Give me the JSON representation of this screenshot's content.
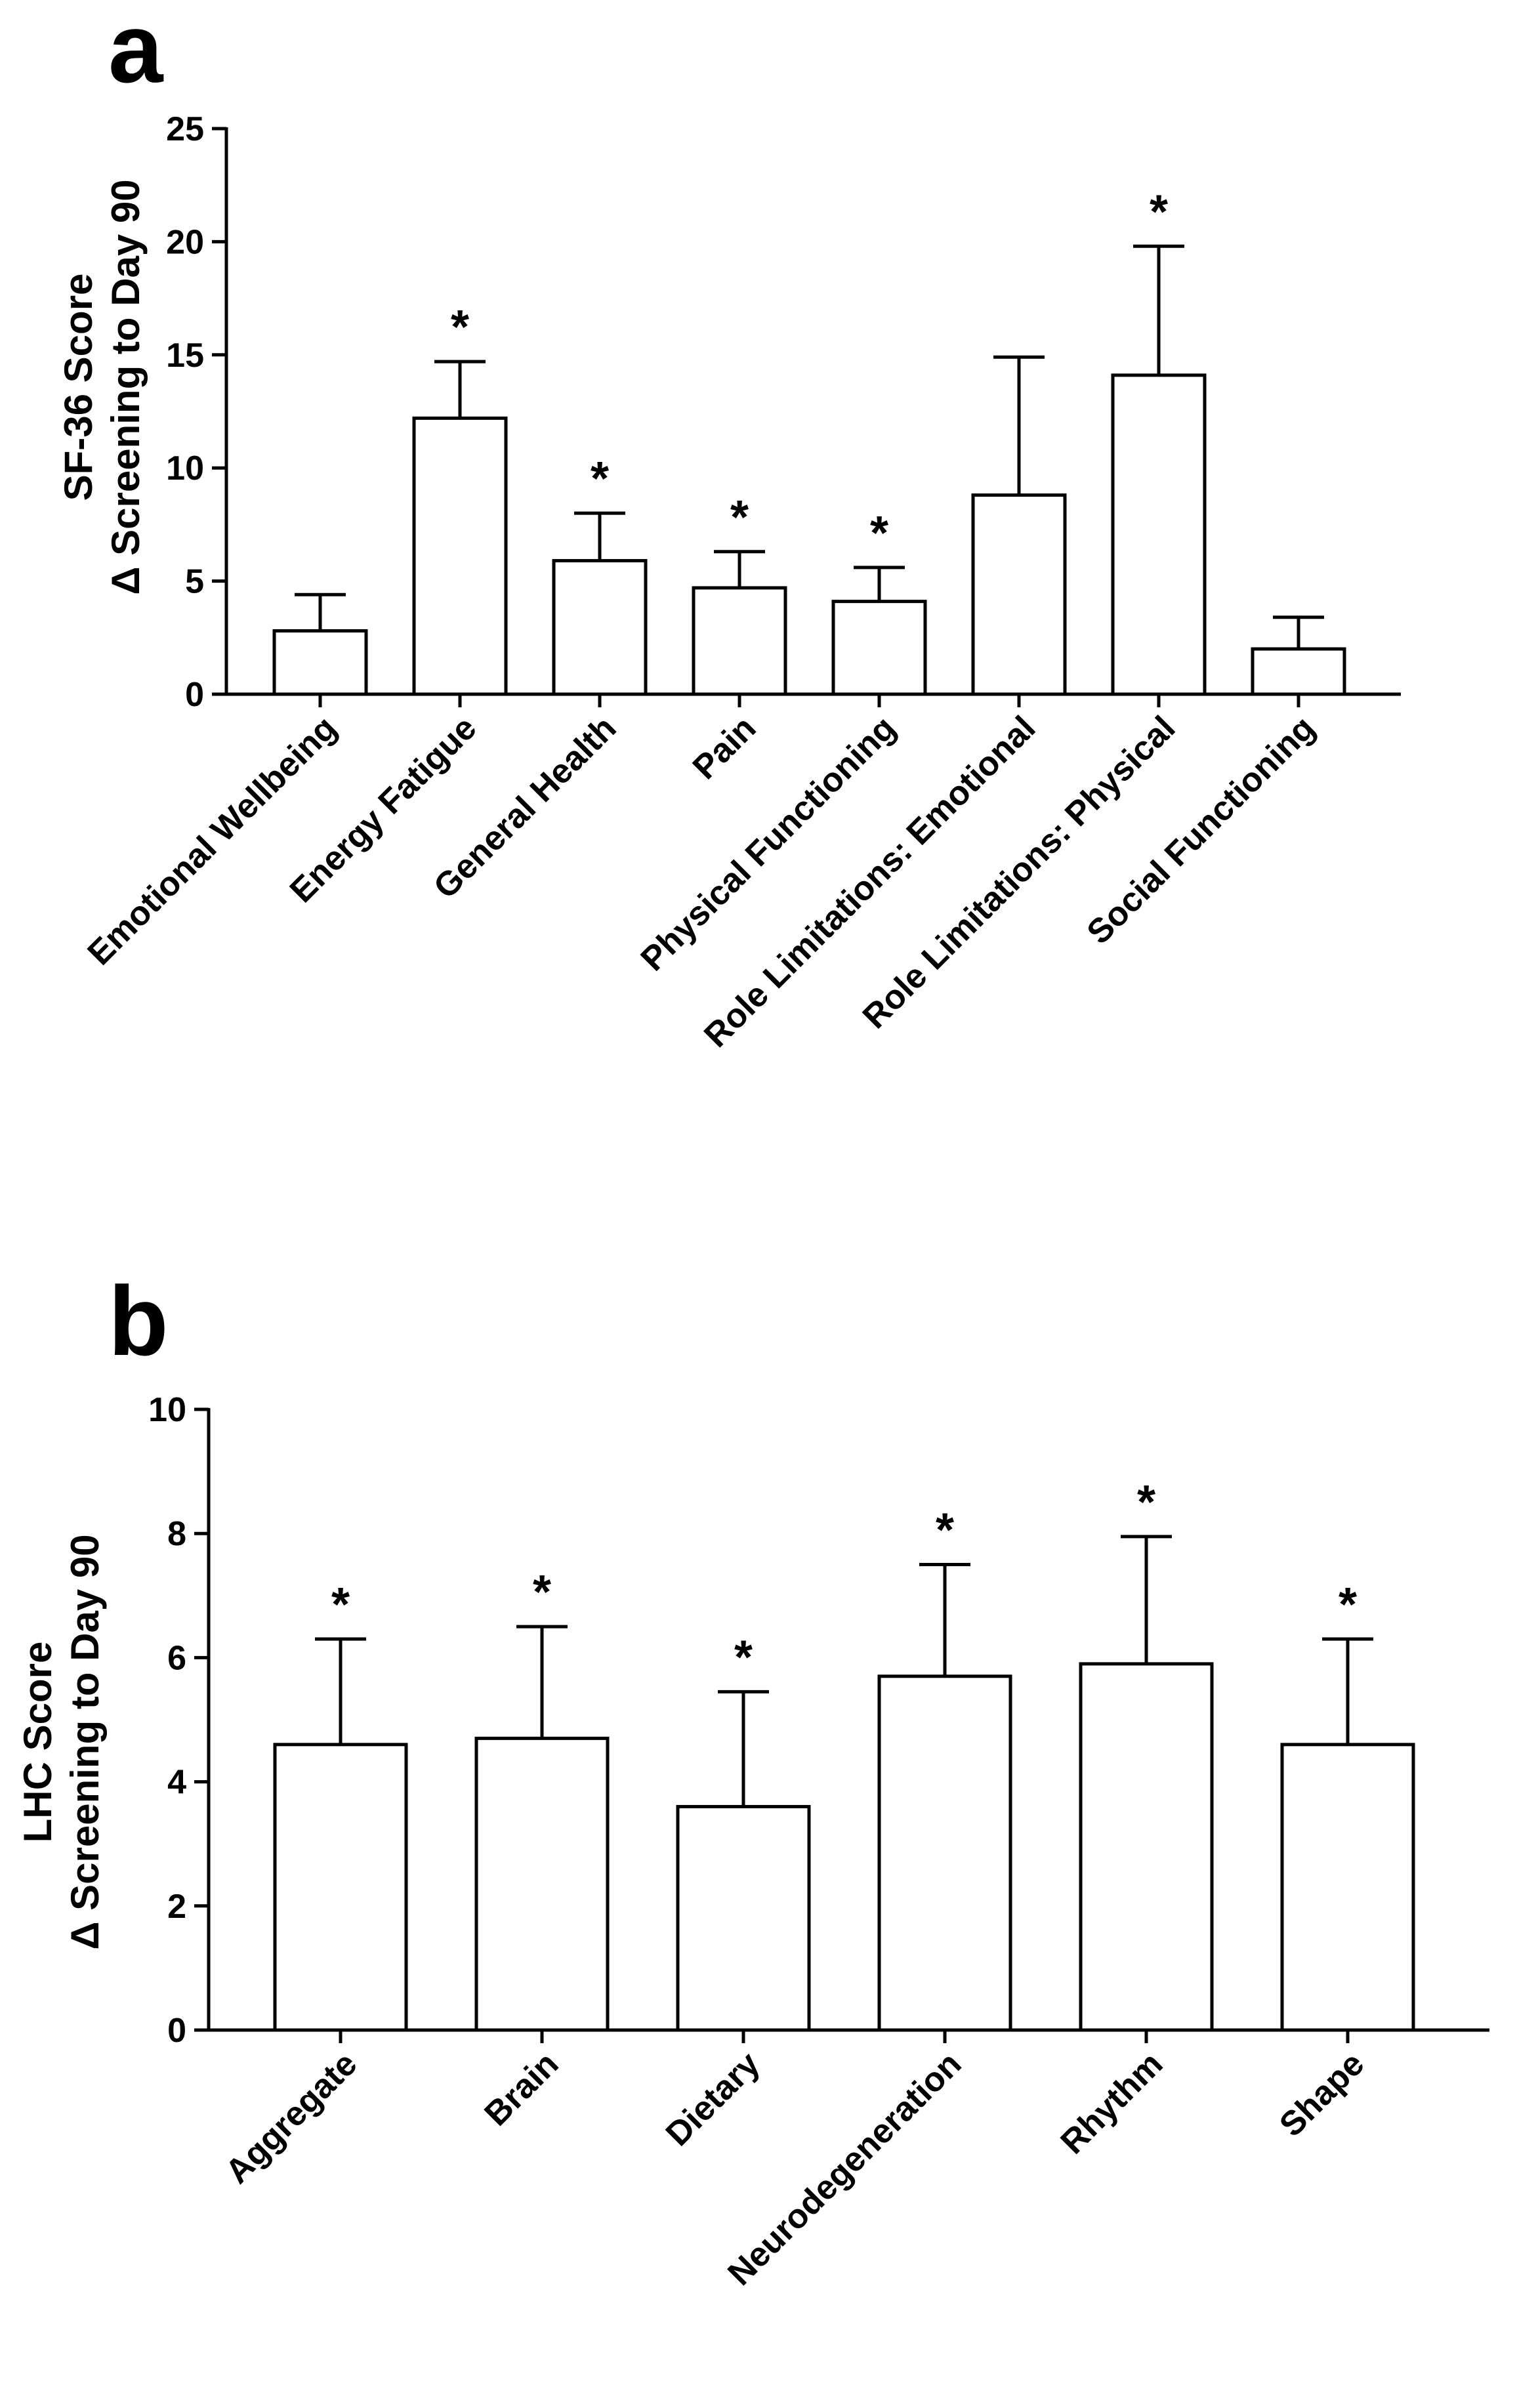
{
  "chart_data": [
    {
      "panel": "a",
      "type": "bar",
      "title": "",
      "xlabel": "",
      "ylabel": [
        "SF-36 Score",
        "Δ Screening to Day 90"
      ],
      "ylim": [
        0,
        25
      ],
      "yticks": [
        0,
        5,
        10,
        15,
        20,
        25
      ],
      "grid": false,
      "categories": [
        "Emotional Wellbeing",
        "Energy Fatigue",
        "General Health",
        "Pain",
        "Physical Functioning",
        "Role Limitations: Emotional",
        "Role Limitations: Physical",
        "Social Functioning"
      ],
      "values": [
        2.8,
        12.2,
        5.9,
        4.7,
        4.1,
        8.8,
        14.1,
        2.0
      ],
      "error_upper": [
        1.6,
        2.5,
        2.1,
        1.6,
        1.5,
        6.1,
        5.7,
        1.4
      ],
      "significant": [
        false,
        true,
        true,
        true,
        true,
        false,
        true,
        false
      ],
      "significance_marker": "*"
    },
    {
      "panel": "b",
      "type": "bar",
      "title": "",
      "xlabel": "",
      "ylabel": [
        "LHC Score",
        "Δ Screening to Day 90"
      ],
      "ylim": [
        0,
        10
      ],
      "yticks": [
        0,
        2,
        4,
        6,
        8,
        10
      ],
      "grid": false,
      "categories": [
        "Aggregate",
        "Brain",
        "Dietary",
        "Neurodegeneration",
        "Rhythm",
        "Shape"
      ],
      "values": [
        4.6,
        4.7,
        3.6,
        5.7,
        5.9,
        4.6
      ],
      "error_upper": [
        1.7,
        1.8,
        1.85,
        1.8,
        2.05,
        1.7
      ],
      "significant": [
        true,
        true,
        true,
        true,
        true,
        true
      ],
      "significance_marker": "*"
    }
  ]
}
